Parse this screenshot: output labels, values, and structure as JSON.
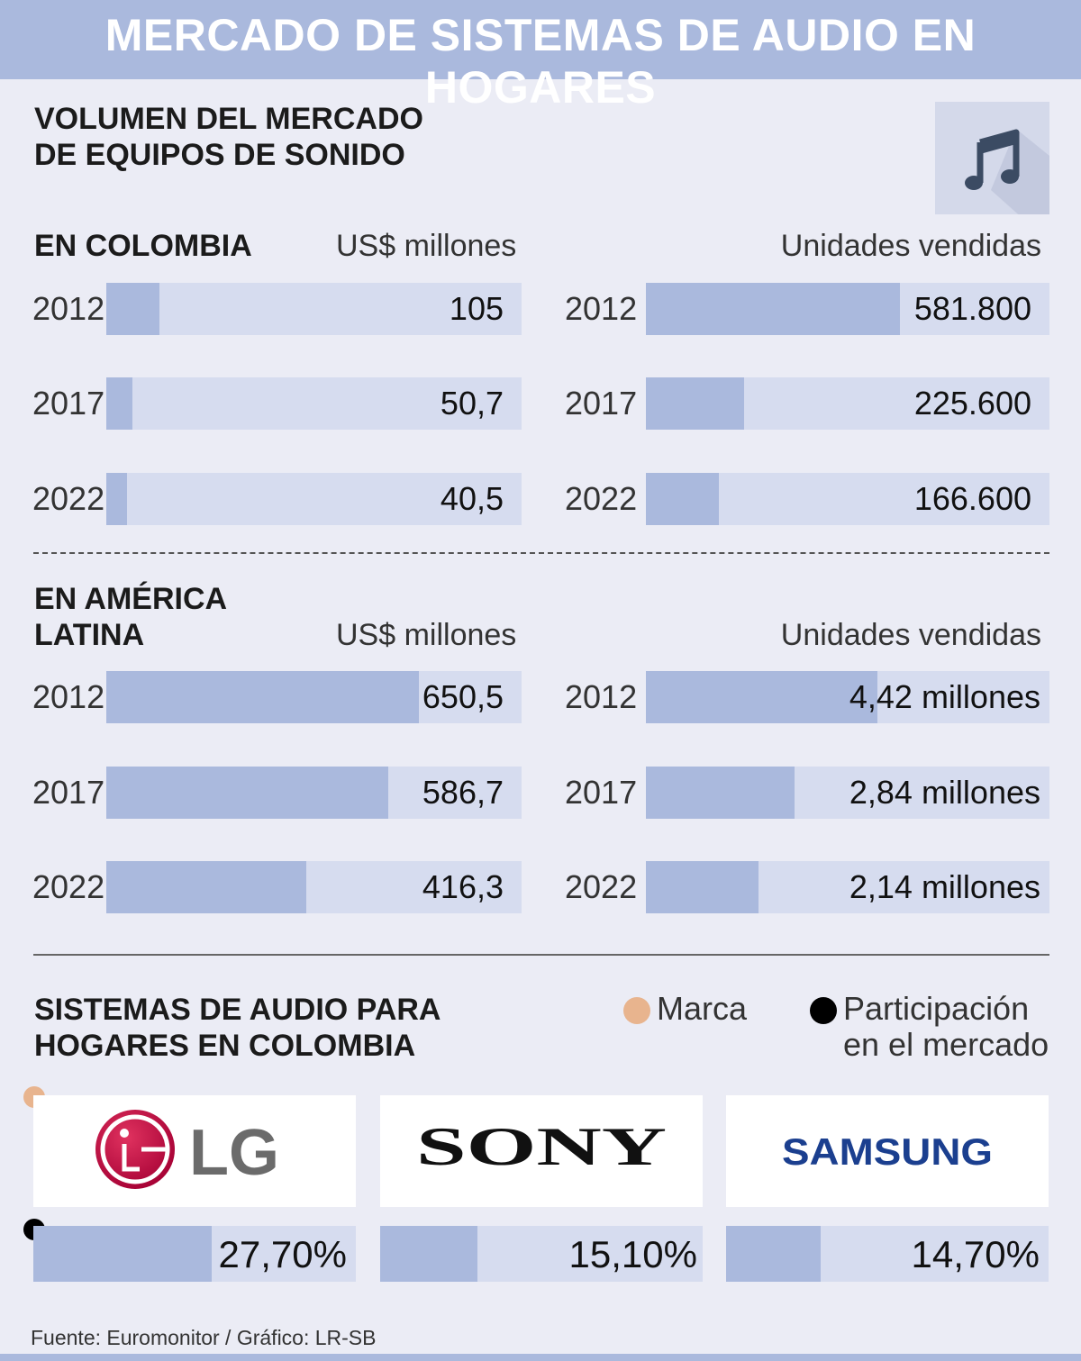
{
  "title": "MERCADO DE SISTEMAS DE AUDIO EN HOGARES",
  "section_volume": {
    "title_line1": "VOLUMEN DEL MERCADO",
    "title_line2": "DE EQUIPOS DE SONIDO",
    "icon": "music-note-icon"
  },
  "colombia": {
    "label": "EN COLOMBIA",
    "usd_unit": "US$ millones",
    "units_unit": "Unidades vendidas"
  },
  "latam": {
    "label_line1": "EN AMÉRICA",
    "label_line2": "LATINA",
    "usd_unit": "US$ millones",
    "units_unit": "Unidades vendidas"
  },
  "brands_section": {
    "title_line1": "SISTEMAS DE AUDIO PARA",
    "title_line2": "HOGARES EN COLOMBIA",
    "legend_brand": "Marca",
    "legend_share_line1": "Participación",
    "legend_share_line2": "en el mercado",
    "brand_logos": [
      "LG",
      "SONY",
      "SAMSUNG"
    ]
  },
  "source": "Fuente: Euromonitor  / Gráfico: LR-SB",
  "colors": {
    "accent": "#aab9dd",
    "track": "#d6dcef",
    "brand_dot": "#e8b48e",
    "share_dot": "#000000",
    "lg_red": "#a50034"
  },
  "chart_data": [
    {
      "type": "bar",
      "id": "col_usd",
      "title": "EN COLOMBIA",
      "ylabel": "US$ millones",
      "categories": [
        "2012",
        "2017",
        "2022"
      ],
      "values": [
        105,
        50.7,
        40.5
      ],
      "labels": [
        "105",
        "50,7",
        "40,5"
      ],
      "xlim": [
        0,
        820
      ]
    },
    {
      "type": "bar",
      "id": "col_units",
      "title": "EN COLOMBIA",
      "ylabel": "Unidades vendidas",
      "categories": [
        "2012",
        "2017",
        "2022"
      ],
      "values": [
        581800,
        225600,
        166600
      ],
      "labels": [
        "581.800",
        "225.600",
        "166.600"
      ],
      "xlim": [
        0,
        925000
      ]
    },
    {
      "type": "bar",
      "id": "lat_usd",
      "title": "EN AMÉRICA LATINA",
      "ylabel": "US$ millones",
      "categories": [
        "2012",
        "2017",
        "2022"
      ],
      "values": [
        650.5,
        586.7,
        416.3
      ],
      "labels": [
        "650,5",
        "586,7",
        "416,3"
      ],
      "xlim": [
        0,
        865
      ]
    },
    {
      "type": "bar",
      "id": "lat_units",
      "title": "EN AMÉRICA LATINA",
      "ylabel": "Unidades vendidas",
      "categories": [
        "2012",
        "2017",
        "2022"
      ],
      "values": [
        4.42,
        2.84,
        2.14
      ],
      "labels": [
        "4,42 millones",
        "2,84 millones",
        "2,14 millones"
      ],
      "xlim": [
        0,
        7.7
      ]
    },
    {
      "type": "bar",
      "id": "brand_share",
      "title": "SISTEMAS DE AUDIO PARA HOGARES EN COLOMBIA",
      "ylabel": "Participación en el mercado",
      "categories": [
        "LG",
        "SONY",
        "SAMSUNG"
      ],
      "values": [
        27.7,
        15.1,
        14.7
      ],
      "labels": [
        "27,70%",
        "15,10%",
        "14,70%"
      ],
      "xlim": [
        0,
        50
      ]
    }
  ]
}
